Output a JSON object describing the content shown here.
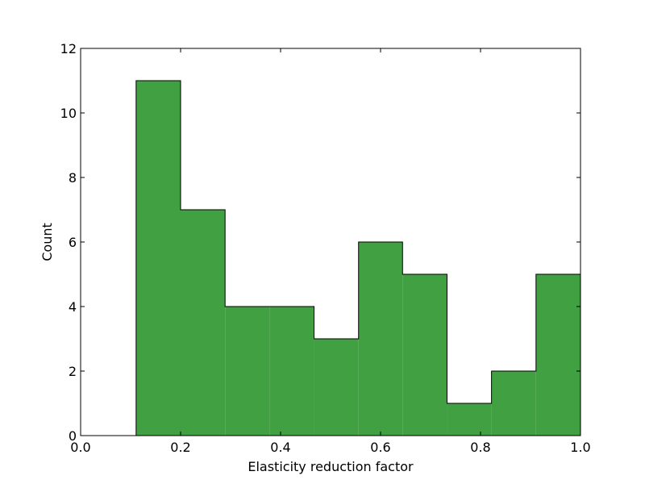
{
  "chart_data": {
    "type": "histogram",
    "title": "",
    "xlabel": "Elasticity reduction factor",
    "ylabel": "Count",
    "xlim": [
      0.0,
      1.0
    ],
    "ylim": [
      0,
      12
    ],
    "xticks": [
      0.0,
      0.2,
      0.4,
      0.6,
      0.8,
      1.0
    ],
    "xtick_labels": [
      "0.0",
      "0.2",
      "0.4",
      "0.6",
      "0.8",
      "1.0"
    ],
    "yticks": [
      0,
      2,
      4,
      6,
      8,
      10,
      12
    ],
    "ytick_labels": [
      "0",
      "2",
      "4",
      "6",
      "8",
      "10",
      "12"
    ],
    "bin_edges": [
      0.111,
      0.2,
      0.289,
      0.378,
      0.467,
      0.556,
      0.644,
      0.733,
      0.822,
      0.911,
      1.0
    ],
    "counts": [
      11,
      7,
      4,
      4,
      3,
      6,
      5,
      1,
      2,
      5
    ],
    "grid": false,
    "fill_color": "#41a041",
    "edge_color": "#000000"
  }
}
